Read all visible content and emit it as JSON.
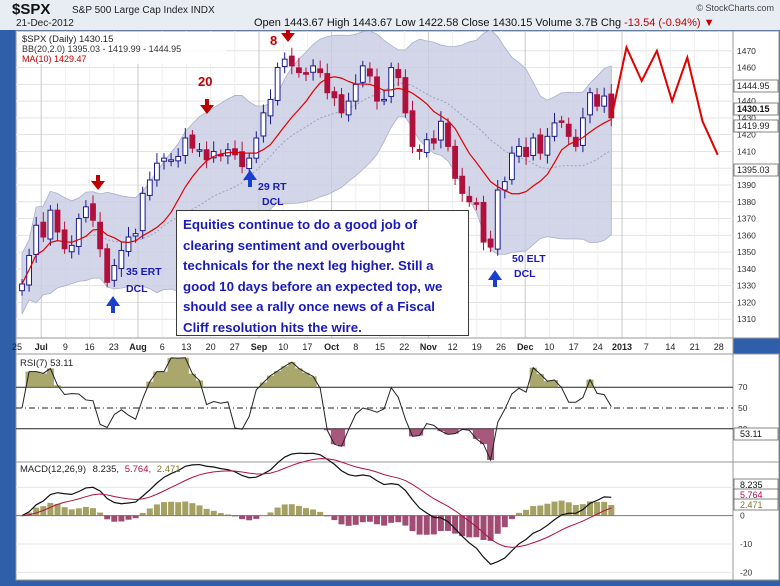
{
  "header": {
    "symbol": "$SPX",
    "name": "S&P 500 Large Cap Index  INDX",
    "date": "21-Dec-2012",
    "open_label": "Open",
    "open": "1443.67",
    "high_label": "High",
    "high": "1443.67",
    "low_label": "Low",
    "low": "1422.58",
    "close_label": "Close",
    "close": "1430.15",
    "volume_label": "Volume",
    "volume": "3.7B",
    "chg_label": "Chg",
    "chg": "-13.54 (-0.94%)",
    "credit": "© StockCharts.com"
  },
  "legend": {
    "price": "$SPX (Daily) 1430.15",
    "bb": "BB(20,2.0) 1395.03 - 1419.99 - 1444.95",
    "ma": "MA(10) 1429.47",
    "rsi": "RSI(7) 53.11",
    "macd_label": "MACD(12,26,9)",
    "macd_v1": "8.235,",
    "macd_v2": "5.764,",
    "macd_v3": "2.471"
  },
  "value_tags": {
    "t1": "1444.95",
    "t2": "1430.15",
    "t3": "1419.99",
    "t4": "1395.03",
    "rsi": "53.11",
    "m1": "8.235",
    "m2": "5.764",
    "m3": "2.471"
  },
  "annotations": {
    "a8": "8",
    "a20": "20",
    "erl1": "35 ERT",
    "erl2": "DCL",
    "rt1": "29 RT",
    "rt2": "DCL",
    "elt1": "50 ELT",
    "elt2": "DCL",
    "note": "Equities continue to do a good job of clearing sentiment and overbought technicals for the next leg higher.  Still a good 10 days before an expected top, we should see a rally once news of a Fiscal Cliff resolution hits the wire."
  },
  "colors": {
    "up": "#1a1a8c",
    "down": "#b0103c",
    "ma": "#e00000",
    "band": "#c8cce2",
    "projection": "#e00000",
    "annotation": "#1a1ab8",
    "arrow_red": "#c00000",
    "arrow_blue": "#1a3fd0"
  },
  "chart_data": {
    "type": "line",
    "title": "$SPX (Daily) 1430.15",
    "price_axis": {
      "ylim": [
        1300,
        1480
      ],
      "ticks": [
        1310,
        1320,
        1330,
        1340,
        1350,
        1360,
        1370,
        1380,
        1390,
        1400,
        1410,
        1420,
        1430,
        1440,
        1450,
        1460,
        1470
      ]
    },
    "x_tick_labels": [
      "25",
      "Jul",
      "9",
      "16",
      "23",
      "Aug",
      "6",
      "13",
      "20",
      "27",
      "Sep",
      "10",
      "17",
      "Oct",
      "8",
      "15",
      "22",
      "Nov",
      "12",
      "19",
      "26",
      "Dec",
      "10",
      "17",
      "24",
      "2013",
      "7",
      "14",
      "21",
      "28"
    ],
    "price_close": [
      1331,
      1348,
      1366,
      1359,
      1375,
      1362,
      1352,
      1354,
      1370,
      1377,
      1369,
      1352,
      1332,
      1342,
      1351,
      1359,
      1361,
      1385,
      1393,
      1403,
      1406,
      1405,
      1407,
      1418,
      1412,
      1411,
      1405,
      1410,
      1408,
      1411,
      1408,
      1401,
      1406,
      1418,
      1433,
      1441,
      1460,
      1465,
      1461,
      1457,
      1456,
      1461,
      1457,
      1445,
      1442,
      1433,
      1440,
      1450,
      1461,
      1455,
      1440,
      1441,
      1460,
      1454,
      1433,
      1413,
      1410,
      1417,
      1415,
      1428,
      1413,
      1394,
      1385,
      1380,
      1379,
      1356,
      1353,
      1387,
      1392,
      1409,
      1413,
      1407,
      1418,
      1409,
      1419,
      1427,
      1428,
      1419,
      1413,
      1430,
      1445,
      1437,
      1443,
      1430
    ],
    "projection": [
      1430,
      1472,
      1452,
      1470,
      1440,
      1466,
      1428,
      1408
    ],
    "overlays": [
      "BB(20,2.0)",
      "MA(10)"
    ],
    "rsi": {
      "label": "RSI(7) 53.11",
      "ylim": [
        0,
        100
      ],
      "levels": [
        70,
        50,
        30
      ],
      "ticks": [
        70,
        50,
        30
      ]
    },
    "macd": {
      "label": "MACD(12,26,9) 8.235, 5.764, 2.471",
      "ylim": [
        -22,
        14
      ],
      "ticks": [
        10,
        0,
        -10,
        -20
      ]
    }
  }
}
